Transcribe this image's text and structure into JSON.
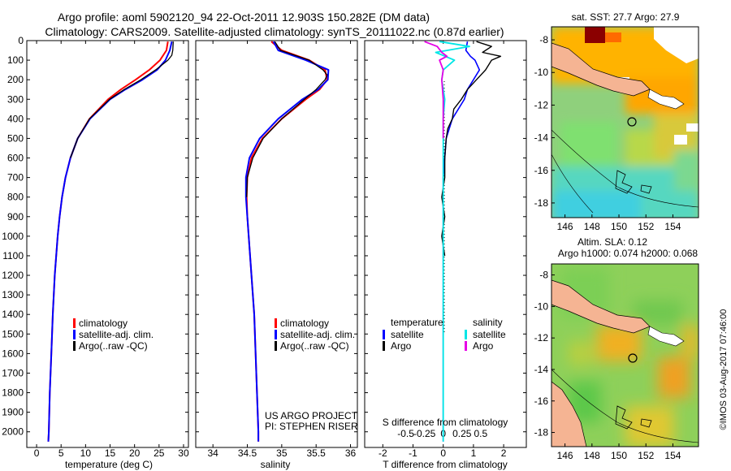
{
  "title": {
    "line1": "Argo profile: aoml 5902120_94 22-Oct-2011 12.903S 150.282E (DM data)",
    "line2": "Climatology: CARS2009. Satellite-adjusted climatology: synTS_20111022.nc (0.87d earlier)"
  },
  "colors": {
    "climatology": "#ff0000",
    "satellite": "#0000ff",
    "argo": "#000000",
    "sat_salinity": "#00e6e6",
    "argo_salinity": "#e600e6",
    "land": "#f5b493"
  },
  "chart_data": [
    {
      "type": "line",
      "name": "temperature-profile",
      "xlabel": "temperature (deg C)",
      "ylabel": "",
      "xlim": [
        -2,
        31
      ],
      "ylim": [
        2080,
        0
      ],
      "xticks": [
        "0",
        "5",
        "10",
        "15",
        "20",
        "25",
        "30"
      ],
      "yticks": [
        "0",
        "100",
        "200",
        "300",
        "400",
        "500",
        "600",
        "700",
        "800",
        "900",
        "1000",
        "1100",
        "1200",
        "1300",
        "1400",
        "1500",
        "1600",
        "1700",
        "1800",
        "1900",
        "2000"
      ],
      "legend": [
        "climatology",
        "satellite-adj. clim.",
        "Argo(..raw -QC)"
      ],
      "series": [
        {
          "name": "climatology",
          "depth": [
            5,
            50,
            100,
            150,
            200,
            250,
            300,
            400,
            500,
            600,
            700,
            800,
            900,
            1000,
            1200,
            1400,
            1600,
            1800,
            2000,
            2050
          ],
          "values": [
            26.8,
            26.5,
            25.2,
            23.0,
            20.2,
            17.2,
            14.6,
            10.8,
            8.4,
            6.9,
            5.9,
            5.2,
            4.7,
            4.3,
            3.7,
            3.3,
            3.0,
            2.7,
            2.5,
            2.4
          ]
        },
        {
          "name": "satellite-adj. clim.",
          "depth": [
            5,
            50,
            100,
            150,
            200,
            250,
            300,
            400,
            500,
            600,
            700,
            800,
            900,
            1000,
            1200,
            1400,
            1600,
            1800,
            2000,
            2050
          ],
          "values": [
            27.6,
            27.2,
            26.3,
            24.6,
            21.6,
            18.1,
            15.0,
            10.9,
            8.4,
            6.9,
            5.9,
            5.2,
            4.7,
            4.3,
            3.7,
            3.3,
            3.0,
            2.7,
            2.5,
            2.4
          ]
        },
        {
          "name": "Argo(..raw -QC)",
          "depth": [
            5,
            50,
            75,
            100,
            150,
            200,
            250,
            300,
            400,
            500,
            600
          ],
          "values": [
            27.9,
            27.8,
            27.6,
            26.8,
            24.3,
            21.3,
            17.9,
            14.9,
            10.8,
            8.4,
            6.9
          ]
        }
      ]
    },
    {
      "type": "line",
      "name": "salinity-profile",
      "xlabel": "salinity",
      "xlim": [
        33.75,
        36.1
      ],
      "ylim": [
        2080,
        0
      ],
      "xticks": [
        "34",
        "34.5",
        "35",
        "35.5",
        "36"
      ],
      "legend": [
        "climatology",
        "satellite-adj. clim.",
        "Argo(..raw -QC)"
      ],
      "series": [
        {
          "name": "climatology",
          "depth": [
            5,
            50,
            100,
            150,
            200,
            250,
            300,
            400,
            500,
            600,
            700,
            800,
            900,
            1000,
            1200,
            1400,
            1600,
            1800,
            2000,
            2050
          ],
          "values": [
            34.85,
            35.0,
            35.4,
            35.63,
            35.66,
            35.55,
            35.35,
            35.0,
            34.72,
            34.56,
            34.5,
            34.49,
            34.5,
            34.52,
            34.56,
            34.6,
            34.62,
            34.64,
            34.66,
            34.66
          ]
        },
        {
          "name": "satellite-adj. clim.",
          "depth": [
            5,
            50,
            100,
            150,
            200,
            250,
            300,
            400,
            500,
            600,
            700,
            800,
            900,
            1000,
            1200,
            1400,
            1600,
            1800,
            2000,
            2050
          ],
          "values": [
            34.88,
            34.95,
            35.35,
            35.68,
            35.67,
            35.53,
            35.3,
            34.95,
            34.68,
            34.53,
            34.48,
            34.48,
            34.5,
            34.52,
            34.56,
            34.6,
            34.62,
            34.64,
            34.66,
            34.66
          ]
        },
        {
          "name": "Argo(..raw -QC)",
          "depth": [
            5,
            50,
            100,
            150,
            175,
            200,
            250,
            300,
            400,
            500,
            600,
            700,
            800
          ],
          "values": [
            34.9,
            34.98,
            35.4,
            35.6,
            35.66,
            35.63,
            35.5,
            35.33,
            35.0,
            34.73,
            34.58,
            34.5,
            34.49
          ]
        }
      ]
    },
    {
      "type": "line",
      "name": "difference-profile",
      "xlabel": "T difference from climatology",
      "x2label": "S difference from climatology",
      "xlim": [
        -2.6,
        2.75
      ],
      "ylim": [
        2080,
        0
      ],
      "xticks": [
        "-2",
        "-1",
        "0",
        "1",
        "2"
      ],
      "x2ticks": [
        "-0.5",
        "-0.25",
        "0",
        "0.25",
        "0.5"
      ],
      "legend_temperature": [
        "temperature",
        "satellite",
        "Argo"
      ],
      "legend_salinity": [
        "salinity",
        "satellite",
        "Argo"
      ],
      "annotation": [
        "US ARGO PROJECT",
        "PI: STEPHEN RISER"
      ],
      "series": [
        {
          "name": "temperature satellite",
          "depth": [
            5,
            50,
            80,
            100,
            150,
            200,
            250,
            300,
            400,
            500,
            700,
            900,
            1100,
            1500,
            2050
          ],
          "values": [
            0.8,
            0.75,
            0.9,
            1.05,
            1.2,
            1.0,
            0.8,
            0.7,
            0.3,
            0.1,
            0.0,
            0.0,
            0.0,
            0.0,
            0.0
          ]
        },
        {
          "name": "temperature Argo",
          "depth": [
            5,
            30,
            60,
            80,
            100,
            150,
            200,
            250,
            300,
            350,
            400,
            450,
            500,
            600,
            700,
            800,
            900,
            1000,
            1100
          ],
          "values": [
            1.1,
            1.6,
            1.3,
            1.9,
            1.6,
            1.4,
            1.1,
            0.8,
            0.6,
            0.35,
            0.3,
            0.15,
            0.1,
            0.05,
            0.05,
            -0.05,
            0.05,
            -0.05,
            0.05
          ]
        },
        {
          "name": "salinity satellite",
          "depth": [
            5,
            30,
            60,
            100,
            150,
            200,
            300,
            400,
            500,
            700,
            1000,
            1500,
            2050
          ],
          "values": [
            -0.05,
            0.35,
            -0.1,
            0.15,
            0.0,
            -0.02,
            0.02,
            0.0,
            0.0,
            0.0,
            0.0,
            0.0,
            0.0
          ]
        },
        {
          "name": "salinity Argo",
          "depth": [
            5,
            30,
            60,
            80,
            100,
            150,
            200,
            250,
            300,
            400,
            500
          ],
          "values": [
            -0.25,
            -0.08,
            -0.02,
            0.05,
            -0.05,
            0.0,
            -0.02,
            -0.01,
            0.0,
            0.0,
            0.0
          ]
        }
      ]
    },
    {
      "type": "heatmap",
      "name": "sst-map",
      "title": "sat. SST: 27.7  Argo: 27.9",
      "xticks": [
        "146",
        "148",
        "150",
        "152",
        "154"
      ],
      "yticks": [
        "-8",
        "-10",
        "-12",
        "-14",
        "-16",
        "-18"
      ],
      "float_position": {
        "lon": 150.282,
        "lat": -12.903
      }
    },
    {
      "type": "heatmap",
      "name": "sla-map",
      "title_line1": "Altim. SLA: 0.12",
      "title_line2": "Argo h1000: 0.074 h2000: 0.068",
      "xticks": [
        "146",
        "148",
        "150",
        "152",
        "154"
      ],
      "yticks": [
        "-8",
        "-10",
        "-12",
        "-14",
        "-16",
        "-18"
      ],
      "float_position": {
        "lon": 150.282,
        "lat": -12.903
      }
    }
  ],
  "credit": "©IMOS 03-Aug-2017 07:46:00"
}
